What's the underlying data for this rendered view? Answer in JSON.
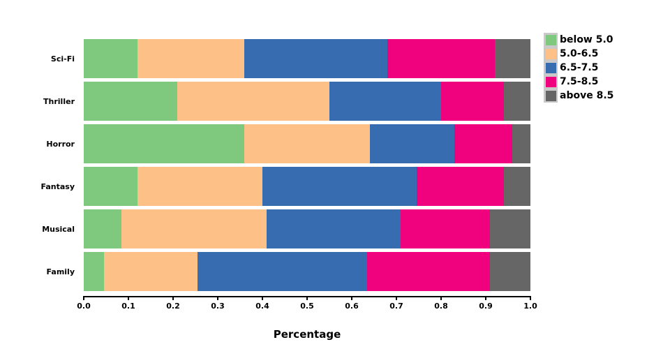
{
  "chart_data": {
    "type": "bar",
    "orientation": "horizontal",
    "stacked": true,
    "title": "",
    "xlabel": "Percentage",
    "ylabel": "",
    "xlim": [
      0.0,
      1.0
    ],
    "xtick_labels": [
      "0.0",
      "0.1",
      "0.2",
      "0.3",
      "0.4",
      "0.5",
      "0.6",
      "0.7",
      "0.8",
      "0.9",
      "1.0"
    ],
    "grid": false,
    "legend_position": "top-right-outside",
    "legend_key_background": "#C9C9C9",
    "background_color": "#FFFFFF",
    "categories": [
      "Sci-Fi",
      "Thriller",
      "Horror",
      "Fantasy",
      "Musical",
      "Family"
    ],
    "series": [
      {
        "name": "below 5.0",
        "color": "#7FC97F",
        "values": [
          0.12,
          0.21,
          0.36,
          0.12,
          0.085,
          0.045
        ]
      },
      {
        "name": "5.0-6.5",
        "color": "#FDC086",
        "values": [
          0.24,
          0.34,
          0.28,
          0.28,
          0.325,
          0.21
        ]
      },
      {
        "name": "6.5-7.5",
        "color": "#386CB0",
        "values": [
          0.32,
          0.25,
          0.19,
          0.345,
          0.3,
          0.38
        ]
      },
      {
        "name": "7.5-8.5",
        "color": "#F0027F",
        "values": [
          0.24,
          0.14,
          0.13,
          0.195,
          0.2,
          0.275
        ]
      },
      {
        "name": "above 8.5",
        "color": "#666666",
        "values": [
          0.08,
          0.06,
          0.04,
          0.06,
          0.09,
          0.09
        ]
      }
    ]
  }
}
